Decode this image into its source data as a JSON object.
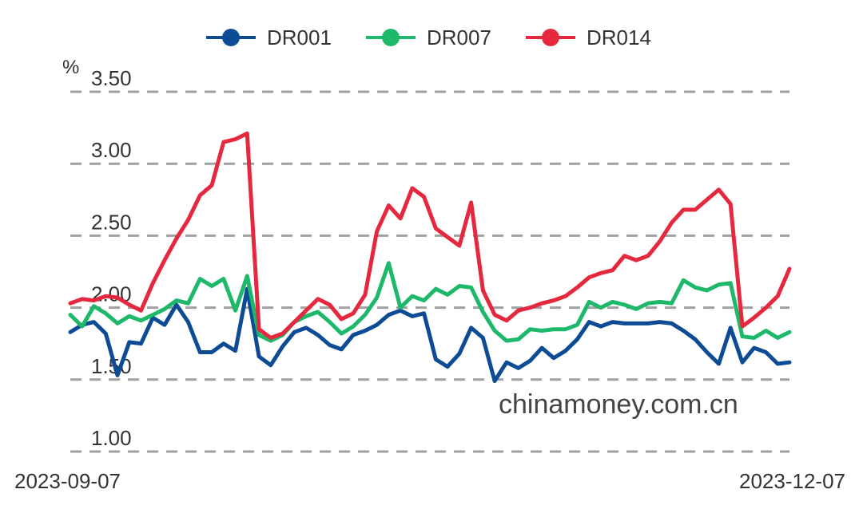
{
  "chart_data": {
    "type": "line",
    "title": "",
    "xlabel": "",
    "ylabel": "%",
    "ylim": [
      1.0,
      3.5
    ],
    "yticks": [
      "1.00",
      "1.50",
      "2.00",
      "2.50",
      "3.00",
      "3.50"
    ],
    "grid": true,
    "legend_position": "top-center",
    "x_start_label": "2023-09-07",
    "x_end_label": "2023-12-07",
    "watermark": "chinamoney.com.cn",
    "series": [
      {
        "name": "DR001",
        "color": "#0d4c94",
        "values": [
          1.83,
          1.88,
          1.9,
          1.82,
          1.53,
          1.76,
          1.75,
          1.93,
          1.88,
          2.02,
          1.9,
          1.69,
          1.69,
          1.75,
          1.7,
          2.13,
          1.66,
          1.6,
          1.73,
          1.83,
          1.86,
          1.81,
          1.74,
          1.71,
          1.81,
          1.84,
          1.88,
          1.95,
          1.98,
          1.94,
          1.96,
          1.64,
          1.59,
          1.68,
          1.86,
          1.79,
          1.49,
          1.62,
          1.58,
          1.63,
          1.72,
          1.65,
          1.7,
          1.78,
          1.9,
          1.87,
          1.9,
          1.89,
          1.89,
          1.89,
          1.9,
          1.89,
          1.84,
          1.78,
          1.69,
          1.61,
          1.86,
          1.62,
          1.72,
          1.69,
          1.61,
          1.62
        ]
      },
      {
        "name": "DR007",
        "color": "#1db86a",
        "values": [
          1.95,
          1.87,
          2.01,
          1.96,
          1.89,
          1.94,
          1.91,
          1.95,
          1.99,
          2.05,
          2.03,
          2.2,
          2.15,
          2.2,
          1.98,
          2.22,
          1.81,
          1.77,
          1.81,
          1.9,
          1.94,
          1.97,
          1.9,
          1.82,
          1.87,
          1.95,
          2.07,
          2.31,
          2.0,
          2.08,
          2.05,
          2.13,
          2.09,
          2.15,
          2.14,
          1.97,
          1.84,
          1.77,
          1.78,
          1.85,
          1.84,
          1.85,
          1.85,
          1.88,
          2.04,
          2.0,
          2.04,
          2.02,
          1.99,
          2.03,
          2.04,
          2.03,
          2.19,
          2.14,
          2.12,
          2.16,
          2.17,
          1.8,
          1.79,
          1.84,
          1.79,
          1.83
        ]
      },
      {
        "name": "DR014",
        "color": "#e6283e",
        "values": [
          2.03,
          2.06,
          2.05,
          2.08,
          2.07,
          2.02,
          1.98,
          2.17,
          2.33,
          2.48,
          2.61,
          2.78,
          2.85,
          3.15,
          3.17,
          3.21,
          1.85,
          1.79,
          1.82,
          1.9,
          1.98,
          2.06,
          2.02,
          1.92,
          1.96,
          2.09,
          2.53,
          2.71,
          2.62,
          2.83,
          2.77,
          2.55,
          2.49,
          2.43,
          2.73,
          2.12,
          1.95,
          1.91,
          1.98,
          2.0,
          2.03,
          2.05,
          2.08,
          2.14,
          2.21,
          2.24,
          2.26,
          2.36,
          2.33,
          2.36,
          2.46,
          2.59,
          2.68,
          2.68,
          2.75,
          2.82,
          2.72,
          1.87,
          1.93,
          2.0,
          2.08,
          2.27
        ]
      }
    ]
  }
}
